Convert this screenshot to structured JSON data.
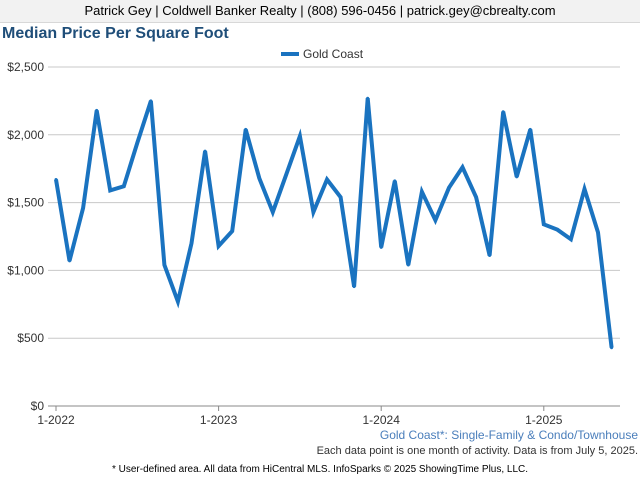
{
  "header": {
    "contact": "Patrick Gey | Coldwell Banker Realty | (808) 596-0456 | patrick.gey@cbrealty.com"
  },
  "chart_data": {
    "type": "line",
    "title": "Median Price Per Square Foot",
    "legend_position": "top-center",
    "grid": true,
    "ylim": [
      0,
      2500
    ],
    "yticks": [
      0,
      500,
      1000,
      1500,
      2000,
      2500
    ],
    "ytick_labels": [
      "$0",
      "$500",
      "$1,000",
      "$1,500",
      "$2,000",
      "$2,500"
    ],
    "xticks": [
      "1-2022",
      "1-2023",
      "1-2024",
      "1-2025"
    ],
    "x": [
      "1-2022",
      "2-2022",
      "3-2022",
      "4-2022",
      "5-2022",
      "6-2022",
      "7-2022",
      "8-2022",
      "9-2022",
      "10-2022",
      "11-2022",
      "12-2022",
      "1-2023",
      "2-2023",
      "3-2023",
      "4-2023",
      "5-2023",
      "6-2023",
      "7-2023",
      "8-2023",
      "9-2023",
      "10-2023",
      "11-2023",
      "12-2023",
      "1-2024",
      "2-2024",
      "3-2024",
      "4-2024",
      "5-2024",
      "6-2024",
      "7-2024",
      "8-2024",
      "9-2024",
      "10-2024",
      "11-2024",
      "12-2024",
      "1-2025",
      "2-2025",
      "3-2025",
      "4-2025",
      "5-2025",
      "6-2025"
    ],
    "series": [
      {
        "name": "Gold Coast",
        "color": "#1a73c0",
        "values": [
          1670,
          1070,
          1460,
          2180,
          1590,
          1620,
          1940,
          2250,
          1040,
          770,
          1200,
          1880,
          1180,
          1290,
          2040,
          1680,
          1430,
          1710,
          1990,
          1430,
          1670,
          1540,
          880,
          2270,
          1170,
          1660,
          1040,
          1580,
          1370,
          1610,
          1760,
          1540,
          1110,
          2170,
          1690,
          2040,
          1340,
          1300,
          1230,
          1600,
          1280,
          430
        ]
      }
    ]
  },
  "footer": {
    "subtitle": "Gold Coast*: Single-Family & Condo/Townhouse",
    "note": "Each data point is one month of activity. Data is from July 5, 2025.",
    "disclaimer": "* User-defined area. All data from HiCentral MLS. InfoSparks © 2025 ShowingTime Plus, LLC."
  }
}
